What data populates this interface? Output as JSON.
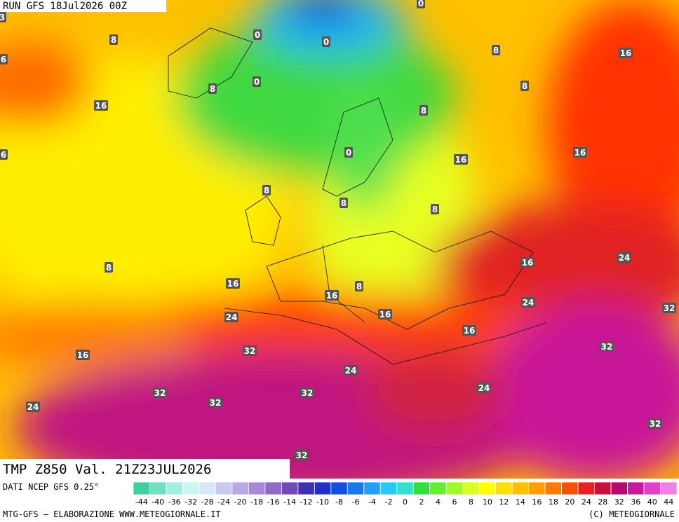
{
  "header": {
    "run": "RUN GFS 18Jul2026 00Z"
  },
  "map": {
    "field_label": "TMP Z850 Val. 21Z23JUL2026",
    "contour_labels": [
      0,
      0,
      0,
      0,
      8,
      8,
      16,
      8,
      8,
      16,
      8,
      0,
      16,
      16,
      8,
      8,
      8,
      8,
      16,
      24,
      16,
      8,
      16,
      24,
      32,
      16,
      24,
      16,
      32,
      32,
      16,
      24,
      32,
      32,
      24,
      32,
      24,
      32,
      32,
      6,
      6,
      3
    ]
  },
  "footer": {
    "source": "DATI NCEP GFS 0.25°",
    "credit": "MTG-GFS — ELABORAZIONE WWW.METEOGIORNALE.IT",
    "copyright": "(C) METEOGIORNALE"
  },
  "scale": {
    "labels": [
      -44,
      -40,
      -36,
      -32,
      -28,
      -24,
      -20,
      -18,
      -16,
      -14,
      -12,
      -10,
      -8,
      -6,
      -4,
      -2,
      0,
      2,
      4,
      6,
      8,
      10,
      12,
      14,
      16,
      18,
      20,
      24,
      28,
      32,
      36,
      40,
      44
    ],
    "colors": [
      "#40d0a0",
      "#70e0c0",
      "#a0f0e0",
      "#c8f8f0",
      "#d8e8f8",
      "#c8c8f0",
      "#b8a8e8",
      "#a888d8",
      "#9068c8",
      "#7048b8",
      "#4030b0",
      "#2030c8",
      "#1050e0",
      "#1878f0",
      "#20a0f8",
      "#28c8f8",
      "#30e0d0",
      "#30e040",
      "#60f030",
      "#a0f828",
      "#d8ff20",
      "#ffff00",
      "#ffe000",
      "#ffc000",
      "#ffa000",
      "#ff7800",
      "#ff5000",
      "#e82020",
      "#c81040",
      "#b80870",
      "#c818a0",
      "#e040c8",
      "#f080e8"
    ]
  }
}
